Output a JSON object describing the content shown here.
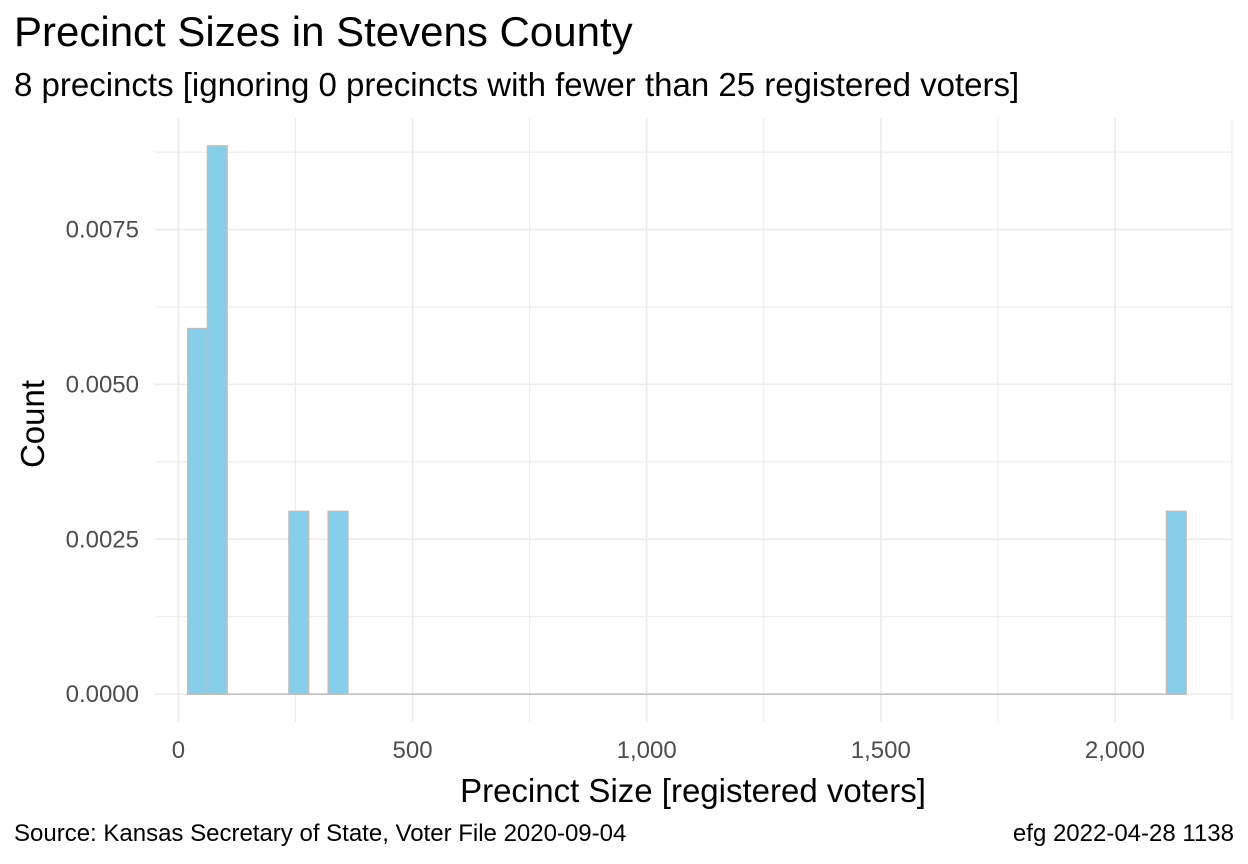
{
  "chart_data": {
    "type": "bar",
    "title": "Precinct Sizes in Stevens County",
    "subtitle": "8 precincts [ignoring 0 precincts with fewer than 25 registered voters]",
    "xlabel": "Precinct Size [registered voters]",
    "ylabel": "Count",
    "xlim": [
      -50,
      2250
    ],
    "ylim": [
      -0.00045,
      0.0093
    ],
    "x_ticks": [
      0,
      500,
      1000,
      1500,
      2000
    ],
    "x_tick_labels": [
      "0",
      "500",
      "1,000",
      "1,500",
      "2,000"
    ],
    "y_ticks": [
      0,
      0.0025,
      0.005,
      0.0075
    ],
    "y_tick_labels": [
      "0.0000",
      "0.0025",
      "0.0050",
      "0.0075"
    ],
    "grid": true,
    "bars": [
      {
        "x0": 20,
        "x1": 62,
        "value": 0.0059
      },
      {
        "x0": 62,
        "x1": 104,
        "value": 0.00885
      },
      {
        "x0": 236,
        "x1": 278,
        "value": 0.00295
      },
      {
        "x0": 320,
        "x1": 362,
        "value": 0.00295
      },
      {
        "x0": 2110,
        "x1": 2152,
        "value": 0.00295
      }
    ],
    "bar_fill": "#87ceeb",
    "bar_stroke": "#bebebe",
    "grid_color": "#ebebeb"
  },
  "caption": {
    "source": "Source:  Kansas Secretary of State, Voter File  2020-09-04",
    "credit": "efg 2022-04-28 1138"
  }
}
